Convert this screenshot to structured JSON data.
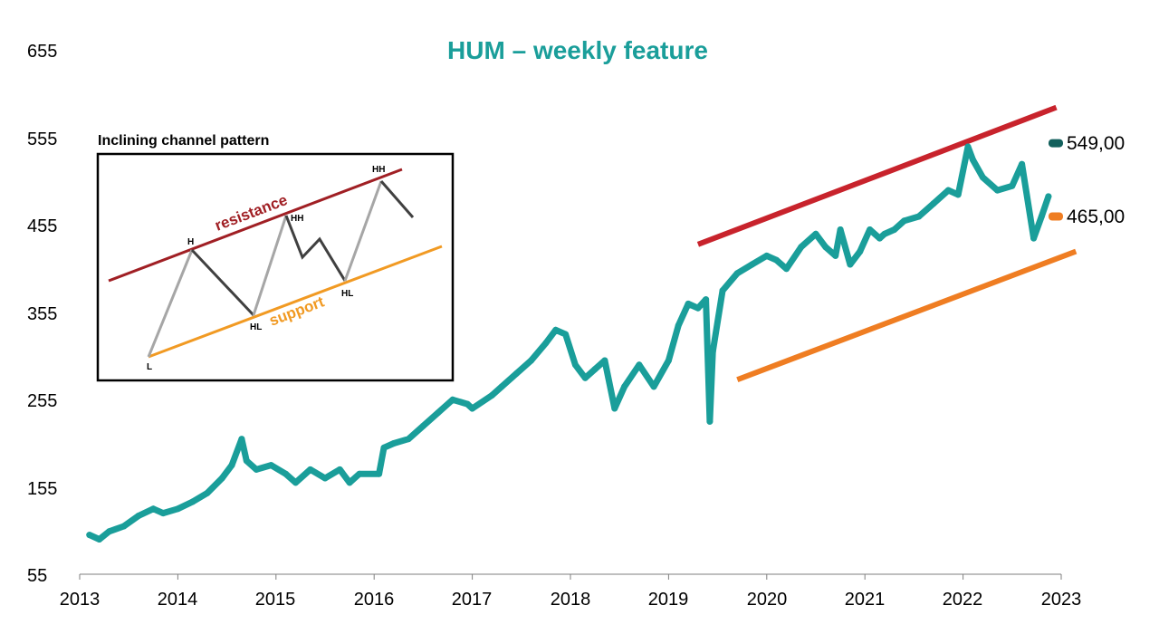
{
  "chart_data": {
    "type": "line",
    "title": "HUM – weekly feature",
    "xlabel": "",
    "ylabel": "",
    "xlim": [
      2013,
      2023
    ],
    "ylim": [
      55,
      655
    ],
    "y_ticks": [
      "655",
      "555",
      "455",
      "355",
      "255",
      "155",
      "55"
    ],
    "x_ticks": [
      "2013",
      "2014",
      "2015",
      "2016",
      "2017",
      "2018",
      "2019",
      "2020",
      "2021",
      "2022",
      "2023"
    ],
    "grid": false,
    "colors": {
      "price": "#1a9e9a",
      "resistance": "#c8232c",
      "support": "#ef7d22",
      "marker_resistance": "#12605c",
      "marker_support": "#ef7d22"
    },
    "series": [
      {
        "name": "",
        "x": [
          2013.1,
          2013.2,
          2013.3,
          2013.45,
          2013.6,
          2013.75,
          2013.85,
          2014.0,
          2014.15,
          2014.3,
          2014.45,
          2014.55,
          2014.65,
          2014.7,
          2014.8,
          2014.95,
          2015.1,
          2015.2,
          2015.35,
          2015.5,
          2015.65,
          2015.75,
          2015.85,
          2016.05,
          2016.1,
          2016.2,
          2016.35,
          2016.5,
          2016.65,
          2016.8,
          2016.95,
          2017.0,
          2017.2,
          2017.3,
          2017.45,
          2017.6,
          2017.75,
          2017.85,
          2017.95,
          2018.05,
          2018.15,
          2018.25,
          2018.35,
          2018.45,
          2018.55,
          2018.7,
          2018.85,
          2019.0,
          2019.1,
          2019.2,
          2019.3,
          2019.38,
          2019.42,
          2019.45,
          2019.55,
          2019.7,
          2019.85,
          2020.0,
          2020.1,
          2020.2,
          2020.35,
          2020.5,
          2020.6,
          2020.7,
          2020.75,
          2020.85,
          2020.95,
          2021.05,
          2021.15,
          2021.2,
          2021.3,
          2021.4,
          2021.55,
          2021.7,
          2021.85,
          2021.95,
          2022.05,
          2022.1,
          2022.2,
          2022.35,
          2022.5,
          2022.6,
          2022.72,
          2022.8,
          2022.87
        ],
        "y": [
          100,
          95,
          104,
          110,
          122,
          130,
          125,
          130,
          138,
          148,
          165,
          180,
          210,
          185,
          175,
          180,
          170,
          160,
          175,
          165,
          175,
          160,
          170,
          170,
          200,
          205,
          210,
          225,
          240,
          255,
          250,
          245,
          260,
          270,
          285,
          300,
          320,
          335,
          330,
          295,
          280,
          290,
          300,
          245,
          270,
          295,
          270,
          300,
          340,
          365,
          360,
          370,
          230,
          310,
          380,
          400,
          410,
          420,
          415,
          405,
          430,
          445,
          430,
          420,
          450,
          410,
          425,
          450,
          440,
          445,
          450,
          460,
          465,
          480,
          495,
          490,
          545,
          530,
          510,
          495,
          500,
          525,
          440,
          465,
          488
        ]
      }
    ],
    "trendlines": [
      {
        "name": "resistance",
        "x": [
          2019.3,
          2022.95
        ],
        "y": [
          433,
          590
        ]
      },
      {
        "name": "support",
        "x": [
          2019.7,
          2023.15
        ],
        "y": [
          278,
          425
        ]
      }
    ],
    "markers": [
      {
        "value": 549,
        "label": "549,00"
      },
      {
        "value": 465,
        "label": "465,00"
      }
    ],
    "inset": {
      "title": "Inclining channel pattern",
      "resistance_label": "resistance",
      "support_label": "support",
      "points": [
        "H",
        "HH",
        "HH",
        "L",
        "HL",
        "HL"
      ]
    }
  }
}
